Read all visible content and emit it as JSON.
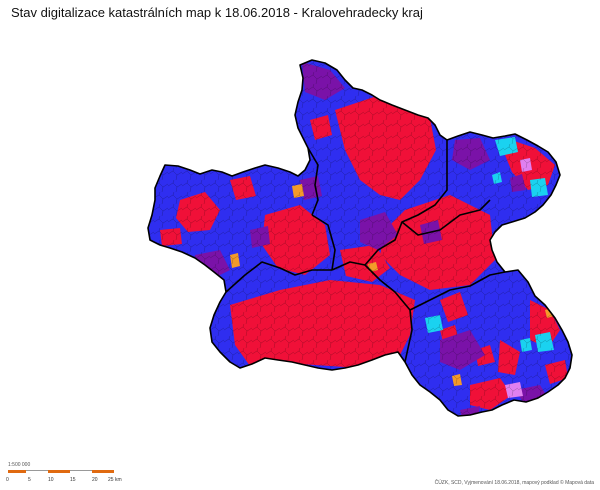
{
  "title": "Stav digitalizace katastrálních map k 18.06.2018 - Kralovehradecky kraj",
  "colors": {
    "digital_red": "#f01038",
    "analog_blue": "#2f2ef0",
    "purple": "#7a12a8",
    "cyan": "#1ad2f0",
    "orange": "#f39a2a",
    "pink": "#e080f0",
    "border": "#000000"
  },
  "scale": {
    "label": "1:500 000",
    "ticks": [
      "0",
      "5",
      "10",
      "15",
      "20",
      "25 km"
    ]
  },
  "credits": "ČÚZK, SCD, Vyjmenování 18.06.2018, mapový podklad © Mapová data"
}
